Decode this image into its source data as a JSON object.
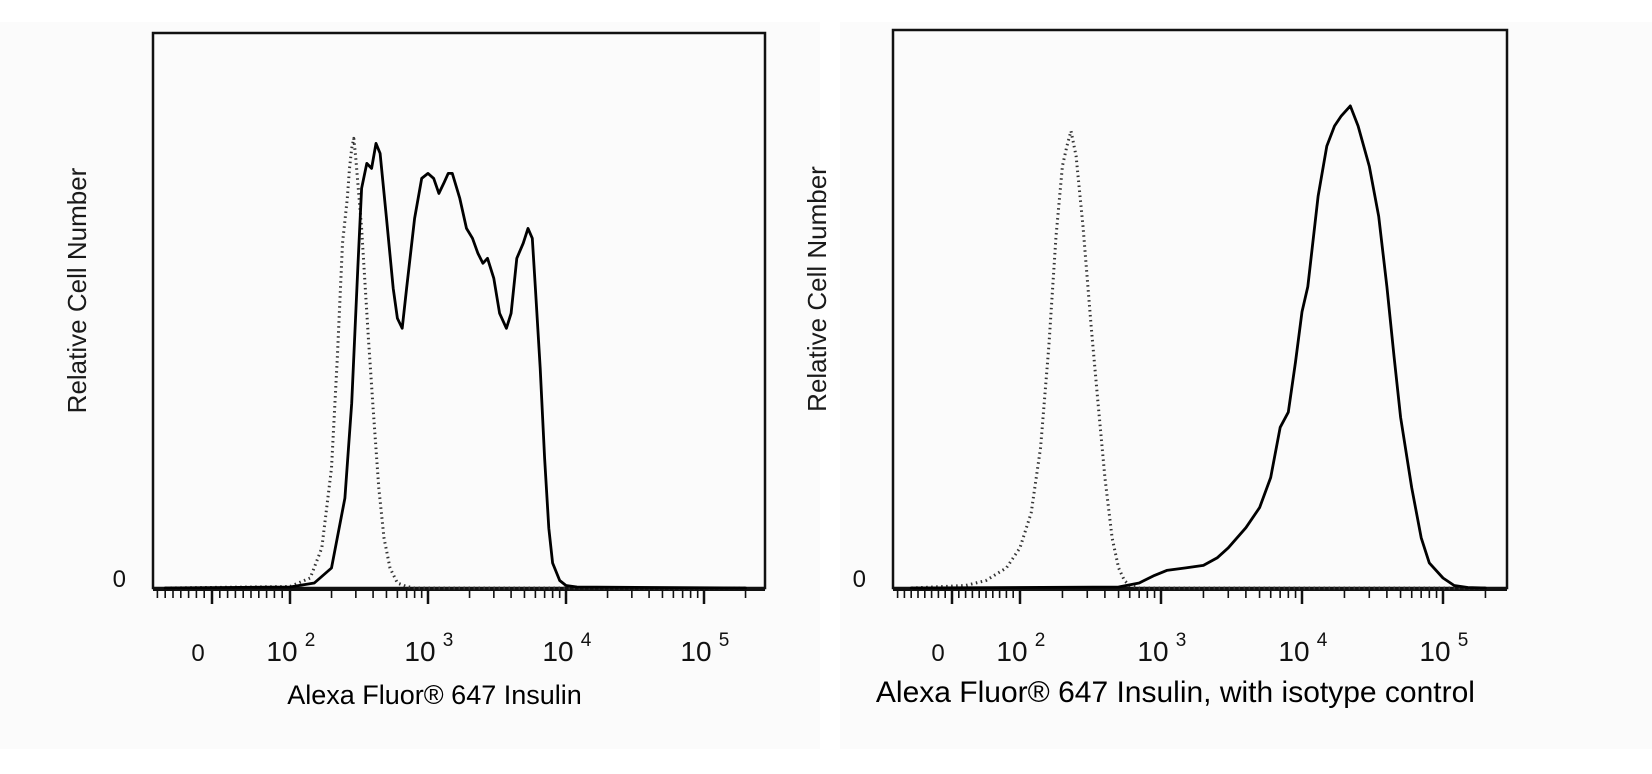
{
  "chart_data": [
    {
      "type": "line",
      "title": "",
      "xlabel": "Alexa Fluor® 647 Insulin",
      "ylabel": "Relative Cell Number",
      "x_scale": "biexponential",
      "x_ticks": [
        {
          "value": 0,
          "base": "0",
          "exp": ""
        },
        {
          "value": 100,
          "base": "10",
          "exp": "2"
        },
        {
          "value": 1000,
          "base": "10",
          "exp": "3"
        },
        {
          "value": 10000,
          "base": "10",
          "exp": "4"
        },
        {
          "value": 100000,
          "base": "10",
          "exp": "5"
        }
      ],
      "y_tick_labels": [
        "0"
      ],
      "ylim": [
        0,
        1
      ],
      "grid": false,
      "series": [
        {
          "style": "dotted",
          "color": "#333333",
          "points": [
            [
              -60,
              0
            ],
            [
              100,
              0.003
            ],
            [
              140,
              0.02
            ],
            [
              170,
              0.08
            ],
            [
              200,
              0.24
            ],
            [
              220,
              0.46
            ],
            [
              240,
              0.69
            ],
            [
              260,
              0.78
            ],
            [
              270,
              0.84
            ],
            [
              280,
              0.88
            ],
            [
              290,
              0.9
            ],
            [
              300,
              0.86
            ],
            [
              330,
              0.72
            ],
            [
              370,
              0.5
            ],
            [
              400,
              0.36
            ],
            [
              440,
              0.2
            ],
            [
              480,
              0.1
            ],
            [
              530,
              0.04
            ],
            [
              600,
              0.01
            ],
            [
              700,
              0.003
            ],
            [
              800,
              0
            ],
            [
              200000,
              0
            ]
          ]
        },
        {
          "style": "solid",
          "color": "#000000",
          "points": [
            [
              -60,
              0
            ],
            [
              100,
              0.002
            ],
            [
              150,
              0.01
            ],
            [
              200,
              0.04
            ],
            [
              250,
              0.18
            ],
            [
              280,
              0.37
            ],
            [
              310,
              0.64
            ],
            [
              330,
              0.8
            ],
            [
              360,
              0.85
            ],
            [
              390,
              0.84
            ],
            [
              420,
              0.89
            ],
            [
              450,
              0.87
            ],
            [
              500,
              0.74
            ],
            [
              560,
              0.6
            ],
            [
              600,
              0.54
            ],
            [
              650,
              0.52
            ],
            [
              700,
              0.6
            ],
            [
              800,
              0.74
            ],
            [
              900,
              0.82
            ],
            [
              1000,
              0.83
            ],
            [
              1100,
              0.82
            ],
            [
              1200,
              0.79
            ],
            [
              1300,
              0.81
            ],
            [
              1400,
              0.83
            ],
            [
              1500,
              0.83
            ],
            [
              1700,
              0.78
            ],
            [
              1900,
              0.72
            ],
            [
              2100,
              0.7
            ],
            [
              2300,
              0.67
            ],
            [
              2500,
              0.65
            ],
            [
              2700,
              0.66
            ],
            [
              3000,
              0.62
            ],
            [
              3300,
              0.55
            ],
            [
              3700,
              0.52
            ],
            [
              4000,
              0.55
            ],
            [
              4400,
              0.66
            ],
            [
              4900,
              0.69
            ],
            [
              5300,
              0.72
            ],
            [
              5700,
              0.7
            ],
            [
              6000,
              0.6
            ],
            [
              6500,
              0.44
            ],
            [
              7000,
              0.26
            ],
            [
              7500,
              0.12
            ],
            [
              8000,
              0.05
            ],
            [
              9000,
              0.015
            ],
            [
              10000,
              0.005
            ],
            [
              12000,
              0.002
            ],
            [
              200000,
              0
            ]
          ]
        }
      ]
    },
    {
      "type": "line",
      "title": "",
      "xlabel": "Alexa Fluor® 647 Insulin, with isotype control",
      "ylabel": "Relative Cell Number",
      "x_scale": "biexponential",
      "x_ticks": [
        {
          "value": 0,
          "base": "0",
          "exp": ""
        },
        {
          "value": 100,
          "base": "10",
          "exp": "2"
        },
        {
          "value": 1000,
          "base": "10",
          "exp": "3"
        },
        {
          "value": 10000,
          "base": "10",
          "exp": "4"
        },
        {
          "value": 100000,
          "base": "10",
          "exp": "5"
        }
      ],
      "y_tick_labels": [
        "0"
      ],
      "ylim": [
        0,
        1
      ],
      "grid": false,
      "series": [
        {
          "style": "dotted",
          "color": "#333333",
          "points": [
            [
              -60,
              0
            ],
            [
              20,
              0.005
            ],
            [
              50,
              0.015
            ],
            [
              80,
              0.04
            ],
            [
              100,
              0.08
            ],
            [
              120,
              0.15
            ],
            [
              140,
              0.28
            ],
            [
              160,
              0.48
            ],
            [
              180,
              0.7
            ],
            [
              200,
              0.84
            ],
            [
              215,
              0.88
            ],
            [
              230,
              0.91
            ],
            [
              250,
              0.86
            ],
            [
              280,
              0.72
            ],
            [
              320,
              0.52
            ],
            [
              360,
              0.36
            ],
            [
              400,
              0.22
            ],
            [
              450,
              0.1
            ],
            [
              500,
              0.04
            ],
            [
              550,
              0.015
            ],
            [
              600,
              0.005
            ],
            [
              700,
              0
            ],
            [
              200000,
              0
            ]
          ]
        },
        {
          "style": "solid",
          "color": "#000000",
          "points": [
            [
              -60,
              0
            ],
            [
              500,
              0.002
            ],
            [
              700,
              0.01
            ],
            [
              900,
              0.025
            ],
            [
              1100,
              0.035
            ],
            [
              1500,
              0.04
            ],
            [
              2000,
              0.045
            ],
            [
              2500,
              0.06
            ],
            [
              3000,
              0.08
            ],
            [
              4000,
              0.12
            ],
            [
              5000,
              0.16
            ],
            [
              6000,
              0.22
            ],
            [
              7000,
              0.32
            ],
            [
              8000,
              0.35
            ],
            [
              9000,
              0.45
            ],
            [
              10000,
              0.55
            ],
            [
              11000,
              0.6
            ],
            [
              13000,
              0.78
            ],
            [
              15000,
              0.88
            ],
            [
              17000,
              0.92
            ],
            [
              19000,
              0.94
            ],
            [
              22000,
              0.96
            ],
            [
              25000,
              0.92
            ],
            [
              30000,
              0.84
            ],
            [
              35000,
              0.74
            ],
            [
              40000,
              0.6
            ],
            [
              45000,
              0.46
            ],
            [
              50000,
              0.34
            ],
            [
              60000,
              0.2
            ],
            [
              70000,
              0.1
            ],
            [
              80000,
              0.05
            ],
            [
              100000,
              0.02
            ],
            [
              120000,
              0.005
            ],
            [
              150000,
              0.001
            ],
            [
              200000,
              0
            ]
          ]
        }
      ]
    }
  ]
}
